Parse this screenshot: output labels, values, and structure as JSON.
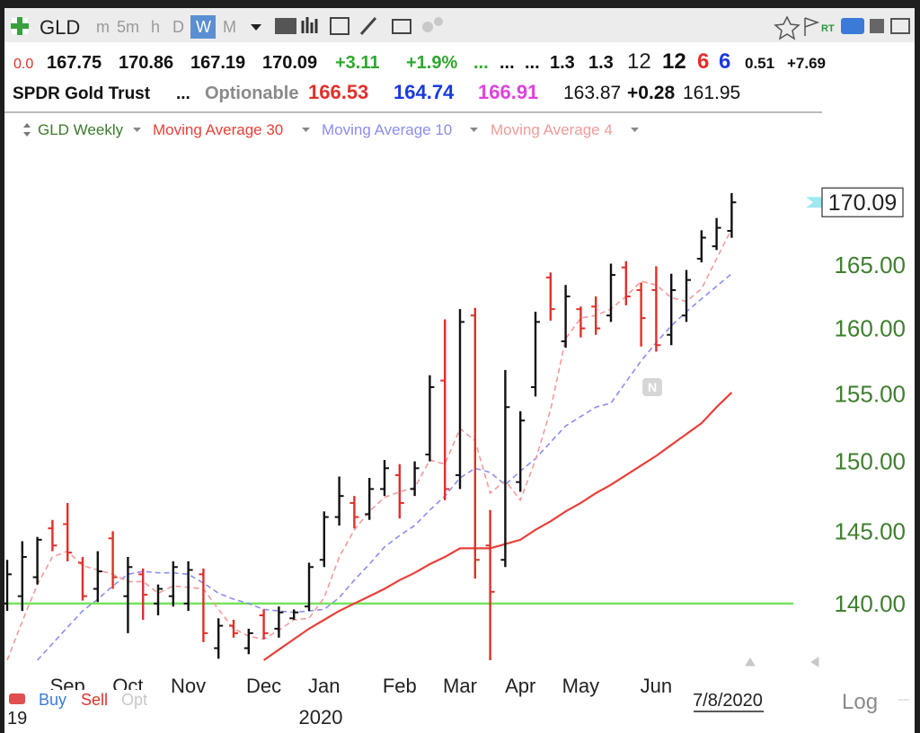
{
  "toolbar": {
    "symbol": "GLD",
    "intervals": [
      "m",
      "5m",
      "h",
      "D",
      "W",
      "M"
    ],
    "rt": "RT"
  },
  "quote": {
    "row1": [
      "0.0",
      "167.75",
      "170.86",
      "167.19",
      "170.09",
      "+3.11",
      "+1.9%",
      "...",
      "...",
      "...",
      "1.3",
      "1.3",
      "12",
      "12",
      "6",
      "6",
      "0.51",
      "+7.69"
    ],
    "row2": [
      "SPDR Gold Trust",
      "...",
      "Optionable",
      "166.53",
      "164.74",
      "166.91",
      "163.87",
      "+0.28",
      "161.95"
    ]
  },
  "chart_data": {
    "type": "ohlc",
    "log": true,
    "ylim": [
      136.2,
      173.1
    ],
    "yticks": [
      {
        "value": 140,
        "label": "140.00"
      },
      {
        "value": 145,
        "label": "145.00"
      },
      {
        "value": 150,
        "label": "150.00"
      },
      {
        "value": 155,
        "label": "155.00"
      },
      {
        "value": 160,
        "label": "160.00"
      },
      {
        "value": 165,
        "label": "165.00"
      }
    ],
    "categories": [
      null,
      null,
      null,
      null,
      "Sep",
      null,
      null,
      null,
      "Oct",
      null,
      null,
      null,
      "Nov",
      null,
      null,
      null,
      null,
      "Dec",
      null,
      null,
      null,
      "Jan",
      null,
      null,
      null,
      null,
      "Feb",
      null,
      null,
      null,
      "Mar",
      null,
      null,
      null,
      "Apr",
      null,
      null,
      null,
      "May",
      null,
      null,
      null,
      null,
      "Jun",
      null,
      null,
      null,
      null,
      null
    ],
    "series": [
      {
        "name": "GLD Weekly",
        "type": "ohlc",
        "up_color": "#111111",
        "down_color": "#e0302a",
        "open": [
          140,
          140.5,
          141.8,
          145.2,
          145.5,
          142.8,
          141,
          144.5,
          140.5,
          142,
          140,
          140.5,
          140,
          142,
          137,
          138.5,
          137,
          139.2,
          138.3,
          139,
          139.8,
          143,
          146,
          147,
          146.2,
          148,
          149,
          148,
          150.5,
          156,
          149,
          161,
          144,
          143,
          148.5,
          155.5,
          164,
          159,
          161.5,
          161.7,
          161,
          164.8,
          163,
          163,
          159.5,
          161,
          165.5,
          166.5,
          167.75
        ],
        "high": [
          143,
          144.3,
          144.6,
          145.8,
          147,
          143.2,
          143.6,
          145,
          143.2,
          142.4,
          141.3,
          142.9,
          142.9,
          142.4,
          139,
          138.9,
          138.3,
          139.6,
          139.8,
          139.6,
          142.8,
          146.4,
          148.9,
          147.5,
          148.8,
          150.1,
          149.8,
          150,
          156.4,
          160.7,
          161.5,
          161.6,
          146.5,
          156.8,
          153.7,
          161.3,
          164.4,
          163.4,
          161.7,
          162.5,
          165.1,
          165.3,
          163.6,
          164.9,
          164.3,
          164.6,
          167.8,
          168.8,
          170.86
        ],
        "low": [
          139.5,
          139.5,
          141.3,
          143.6,
          142.9,
          140.2,
          140.1,
          141,
          138,
          138.9,
          139.2,
          139.8,
          139.5,
          137.4,
          136.3,
          137.7,
          136.6,
          137.6,
          137.7,
          138.9,
          139.5,
          142.5,
          145.4,
          145.2,
          145.8,
          147.5,
          145.9,
          147.5,
          150,
          147.2,
          148,
          141.7,
          136.2,
          142.5,
          147.8,
          154.8,
          160.6,
          158.5,
          159.3,
          159.5,
          160.5,
          161.8,
          158.6,
          158.2,
          158.7,
          160.5,
          165.2,
          166.2,
          167.19
        ],
        "close": [
          142,
          143.2,
          144.4,
          144,
          143.5,
          140.5,
          142.2,
          141.8,
          142.5,
          140.6,
          141,
          142.5,
          142.3,
          138,
          138.5,
          138,
          138,
          138,
          139.4,
          139.4,
          142.5,
          146,
          147.5,
          146,
          148,
          149.5,
          147,
          149.5,
          155.5,
          148,
          160.5,
          143,
          140.8,
          154,
          153,
          160.5,
          161.5,
          162.5,
          160,
          160,
          164.2,
          162.5,
          160.8,
          158.7,
          163,
          163.8,
          167.2,
          168,
          170.09
        ]
      },
      {
        "name": "Moving Average 30",
        "type": "line",
        "color": "#e8403a",
        "line_style": "solid",
        "values": [
          null,
          null,
          null,
          null,
          null,
          null,
          null,
          null,
          null,
          null,
          null,
          null,
          null,
          null,
          null,
          null,
          null,
          136.2,
          136.9,
          137.6,
          138.3,
          138.9,
          139.5,
          140,
          140.5,
          141,
          141.6,
          142.1,
          142.7,
          143.2,
          143.8,
          143.8,
          143.8,
          144.1,
          144.4,
          145.1,
          145.7,
          146.4,
          147,
          147.7,
          148.3,
          149,
          149.7,
          150.4,
          151.2,
          152,
          152.8,
          154,
          155.1
        ]
      },
      {
        "name": "Moving Average 10",
        "type": "line",
        "color": "#8c8cf0",
        "line_style": "dashed",
        "values": [
          null,
          null,
          136.2,
          137.3,
          138.4,
          139.5,
          140.3,
          141.2,
          142,
          142.2,
          142.1,
          142.1,
          142,
          141.4,
          140.7,
          140.3,
          140,
          139.6,
          139.5,
          139.4,
          139.5,
          139.6,
          140.4,
          141.6,
          142.7,
          143.9,
          144.7,
          145.4,
          146.5,
          147.5,
          148.8,
          149.5,
          149.2,
          148.3,
          149.3,
          150.2,
          151.4,
          152.6,
          153.3,
          154,
          154.3,
          155.9,
          157.5,
          158.9,
          160.2,
          161.3,
          162.3,
          163.3,
          164.3
        ]
      },
      {
        "name": "Moving Average 4",
        "type": "line",
        "color": "#f29a9a",
        "line_style": "dashed",
        "values": [
          136.2,
          138.8,
          141.3,
          143.2,
          143.6,
          142.6,
          142.3,
          142,
          141.5,
          141.5,
          140.7,
          141.2,
          141.1,
          141,
          139.6,
          138.3,
          137.8,
          137.6,
          138.2,
          138.9,
          139,
          140.4,
          143.2,
          145.1,
          146.4,
          147.4,
          147.8,
          148.1,
          150.1,
          149.8,
          152.4,
          151.5,
          147.7,
          148.6,
          147.2,
          150.1,
          153.8,
          159.2,
          160.8,
          161,
          161.5,
          162.5,
          163.7,
          163.4,
          162.4,
          162.1,
          163.1,
          165.5,
          167.9
        ]
      }
    ],
    "hline": {
      "value": 140,
      "color": "#74e35b"
    },
    "event_marker": "N"
  },
  "footer": {
    "actions": [
      "Buy",
      "Sell",
      "Opt"
    ],
    "years": [
      "19",
      "2020"
    ],
    "date": "7/8/2020",
    "scale_mode": "Log"
  }
}
